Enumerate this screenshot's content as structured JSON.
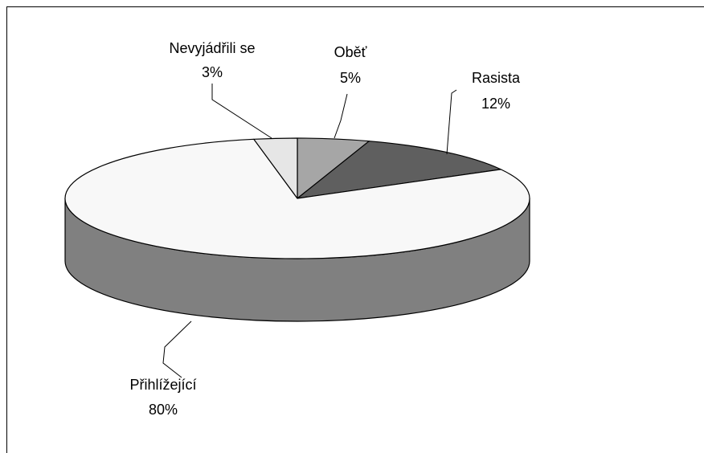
{
  "chart_data": {
    "type": "pie",
    "style": "3d",
    "title": "",
    "legend": "none",
    "slices": [
      {
        "name": "Oběť",
        "value": 5,
        "label": "5%",
        "color": "#a6a6a6"
      },
      {
        "name": "Rasista",
        "value": 12,
        "label": "12%",
        "color": "#5f5f5f"
      },
      {
        "name": "Přihlížející",
        "value": 80,
        "label": "80%",
        "color": "#f8f8f8"
      },
      {
        "name": "Nevyjádřili se",
        "value": 3,
        "label": "3%",
        "color": "#e6e6e6"
      }
    ],
    "side_color": "#808080",
    "outline_color": "#000000"
  }
}
